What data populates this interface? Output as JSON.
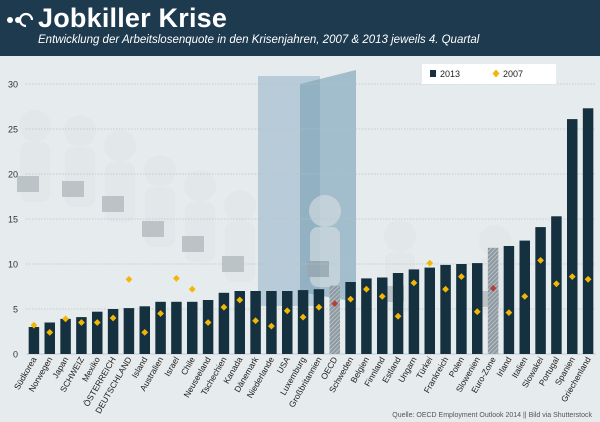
{
  "header": {
    "title": "Jobkiller Krise",
    "subtitle": "Entwicklung der Arbeitslosenquote in den Krisenjahren, 2007 & 2013 jeweils 4. Quartal"
  },
  "source": "Quelle: OECD Employment Outlook 2014 || Bild via Shutterstock",
  "colors": {
    "header_bg": "#1d3a4f",
    "bar_2013": "#15303f",
    "marker_2007": "#f2b705",
    "marker_2007_highlight": "#b5403a",
    "plot_bg": "#e6ebed"
  },
  "chart_data": {
    "type": "bar",
    "title": "Jobkiller Krise",
    "xlabel": "",
    "ylabel": "",
    "ylim": [
      0,
      30
    ],
    "yticks": [
      0,
      5,
      10,
      15,
      20,
      25,
      30
    ],
    "grid": true,
    "legend_position": "top-right",
    "categories": [
      "Südkorea",
      "Norwegen",
      "Japan",
      "SCHWEIZ",
      "Mexiko",
      "ÖSTERREICH",
      "DEUTSCHLAND",
      "Island",
      "Australien",
      "Israel",
      "Chile",
      "Neuseeland",
      "Tschechien",
      "Kanada",
      "Dänemark",
      "Niederlande",
      "USA",
      "Luxemburg",
      "Großbritannien",
      "OECD",
      "Schweden",
      "Belgien",
      "Finnland",
      "Estland",
      "Ungarn",
      "Türkei",
      "Frankreich",
      "Polen",
      "Slowenien",
      "Euro-Zone",
      "Irland",
      "Italien",
      "Slowakei",
      "Portugal",
      "Spanien",
      "Griechenland"
    ],
    "highlight": [
      "OECD",
      "Euro-Zone"
    ],
    "series": [
      {
        "name": "2013",
        "type": "bar",
        "values": [
          3.0,
          3.5,
          3.9,
          4.1,
          4.7,
          5.0,
          5.1,
          5.3,
          5.8,
          5.8,
          5.8,
          6.0,
          6.8,
          7.0,
          7.0,
          7.0,
          7.0,
          7.1,
          7.2,
          7.6,
          8.0,
          8.4,
          8.5,
          9.0,
          9.4,
          9.6,
          9.9,
          10.0,
          10.1,
          11.8,
          12.0,
          12.6,
          14.1,
          15.3,
          26.1,
          27.3
        ]
      },
      {
        "name": "2007",
        "type": "marker",
        "values": [
          3.2,
          2.4,
          3.9,
          3.5,
          3.5,
          4.0,
          8.3,
          2.4,
          4.5,
          8.4,
          7.2,
          3.5,
          5.2,
          6.0,
          3.7,
          3.1,
          4.8,
          4.1,
          5.2,
          5.6,
          6.1,
          7.2,
          6.4,
          4.2,
          7.9,
          10.1,
          7.2,
          8.6,
          4.7,
          7.3,
          4.6,
          6.4,
          10.4,
          7.8,
          8.6,
          8.3
        ]
      }
    ]
  },
  "legend": [
    {
      "label": "2013"
    },
    {
      "label": "2007"
    }
  ]
}
